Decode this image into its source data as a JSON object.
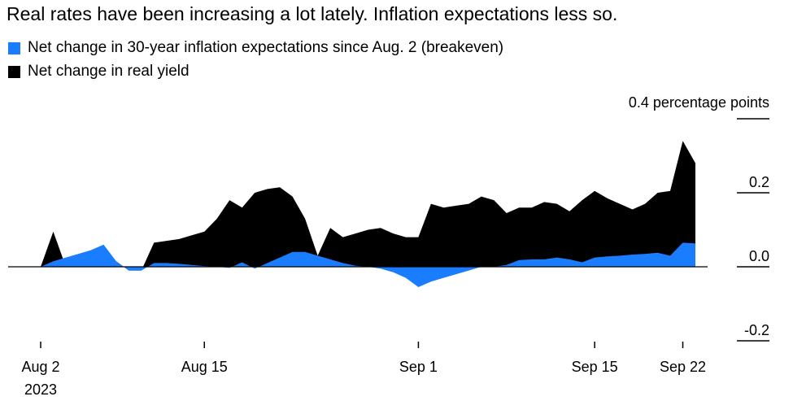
{
  "title": "Real rates have been increasing a lot lately. Inflation expectations less so.",
  "legend": [
    {
      "label": "Net change in 30-year inflation expectations since Aug. 2 (breakeven)",
      "color": "#1a7cff"
    },
    {
      "label": "Net change in real yield",
      "color": "#000000"
    }
  ],
  "chart_data": {
    "type": "area",
    "stacked": true,
    "unit_label": "0.4 percentage points",
    "ylim": [
      -0.2,
      0.4
    ],
    "y_ticks": [
      {
        "value": 0.4,
        "label": ""
      },
      {
        "value": 0.2,
        "label": "0.2"
      },
      {
        "value": 0.0,
        "label": "0.0"
      },
      {
        "value": -0.2,
        "label": "-0.2"
      }
    ],
    "x_ticks": [
      {
        "day": 0,
        "label": "Aug 2",
        "sublabel": "2023"
      },
      {
        "day": 13,
        "label": "Aug 15",
        "sublabel": ""
      },
      {
        "day": 30,
        "label": "Sep 1",
        "sublabel": ""
      },
      {
        "day": 44,
        "label": "Sep 15",
        "sublabel": ""
      },
      {
        "day": 51,
        "label": "Sep 22",
        "sublabel": ""
      }
    ],
    "x": [
      0,
      1,
      2,
      3,
      4,
      5,
      6,
      7,
      8,
      9,
      10,
      11,
      12,
      13,
      14,
      15,
      16,
      17,
      18,
      19,
      20,
      21,
      22,
      23,
      24,
      25,
      26,
      27,
      28,
      29,
      30,
      31,
      32,
      33,
      34,
      35,
      36,
      37,
      38,
      39,
      40,
      41,
      42,
      43,
      44,
      45,
      46,
      47,
      48,
      49,
      50,
      51,
      52
    ],
    "series": [
      {
        "name": "Net change in 30-year inflation expectations since Aug. 2 (breakeven)",
        "color": "#1a7cff",
        "values": [
          0.0,
          0.015,
          0.025,
          0.035,
          0.045,
          0.06,
          0.015,
          -0.01,
          -0.01,
          0.01,
          0.01,
          0.008,
          0.005,
          0.002,
          0.0,
          -0.003,
          0.012,
          -0.005,
          0.01,
          0.025,
          0.04,
          0.04,
          0.03,
          0.02,
          0.01,
          0.003,
          0.0,
          -0.005,
          -0.015,
          -0.03,
          -0.055,
          -0.04,
          -0.03,
          -0.02,
          -0.01,
          0.0,
          0.0,
          0.005,
          0.018,
          0.02,
          0.02,
          0.025,
          0.02,
          0.012,
          0.025,
          0.028,
          0.03,
          0.033,
          0.035,
          0.038,
          0.03,
          0.065,
          0.063
        ]
      },
      {
        "name": "Net change in real yield",
        "color": "#000000",
        "values": [
          0.0,
          0.095,
          0.0,
          0.02,
          0.025,
          0.03,
          0.015,
          -0.01,
          -0.01,
          0.065,
          0.07,
          0.075,
          0.085,
          0.095,
          0.13,
          0.18,
          0.16,
          0.2,
          0.21,
          0.215,
          0.19,
          0.13,
          0.03,
          0.105,
          0.08,
          0.09,
          0.1,
          0.105,
          0.09,
          0.08,
          0.08,
          0.17,
          0.16,
          0.165,
          0.17,
          0.19,
          0.18,
          0.145,
          0.16,
          0.16,
          0.175,
          0.17,
          0.15,
          0.18,
          0.205,
          0.185,
          0.17,
          0.155,
          0.17,
          0.2,
          0.205,
          0.34,
          0.28
        ]
      }
    ]
  }
}
